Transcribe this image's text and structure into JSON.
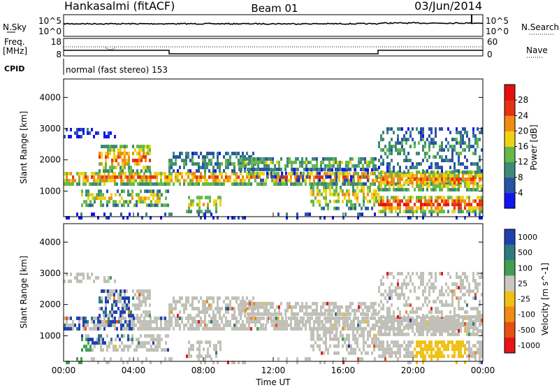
{
  "header": {
    "station": "Hankasalmi (fitACF)",
    "beam": "Beam 01",
    "date": "03/Jun/2014"
  },
  "noise_panel": {
    "left_label": "N.Sky",
    "left_ticks": [
      "10^5",
      "10^0"
    ],
    "right_ticks": [
      "10^5",
      "10^0"
    ],
    "right_label": "N.Search"
  },
  "freq_panel": {
    "left_label_1": "Freq.",
    "left_label_2": "[MHz]",
    "left_ticks": [
      "18",
      "8"
    ],
    "right_ticks": [
      "60",
      "0"
    ],
    "right_label": "Nave"
  },
  "cpid": {
    "label": "CPID",
    "text": "normal (fast stereo) 153"
  },
  "chart_data": [
    {
      "type": "heatmap",
      "ylabel": "Slant Range [km]",
      "y_ticks": [
        "1000",
        "2000",
        "3000",
        "4000"
      ],
      "ylim": [
        180,
        4590
      ],
      "xlim_hours": [
        0,
        24
      ],
      "colorbar": {
        "label": "Power [dB]",
        "ticks": [
          "4",
          "8",
          "12",
          "16",
          "20",
          "24",
          "28"
        ],
        "colors": [
          "#1414ee",
          "#2a53a6",
          "#3e8a76",
          "#66b84a",
          "#f0d214",
          "#f08c14",
          "#e63214",
          "#e60f0f"
        ]
      }
    },
    {
      "type": "heatmap",
      "ylabel": "Slant Range [km]",
      "y_ticks": [
        "1000",
        "2000",
        "3000",
        "4000"
      ],
      "ylim": [
        180,
        4590
      ],
      "xlim_hours": [
        0,
        24
      ],
      "xlabel": "Time UT",
      "x_ticks": [
        "00:00",
        "04:00",
        "08:00",
        "12:00",
        "16:00",
        "20:00",
        "00:00"
      ],
      "colorbar": {
        "label": "Velocity [m s^-1]",
        "ticks": [
          "1000",
          "500",
          "100",
          "25",
          "-25",
          "-100",
          "-500",
          "-1000"
        ],
        "colors": [
          "#2040b0",
          "#2f7a80",
          "#40a050",
          "#c8c8c0",
          "#f0c014",
          "#f08c14",
          "#e65014",
          "#e61414"
        ]
      }
    }
  ],
  "colors": {
    "ground_scatter": "#c0c0b8",
    "frame": "#000000"
  }
}
